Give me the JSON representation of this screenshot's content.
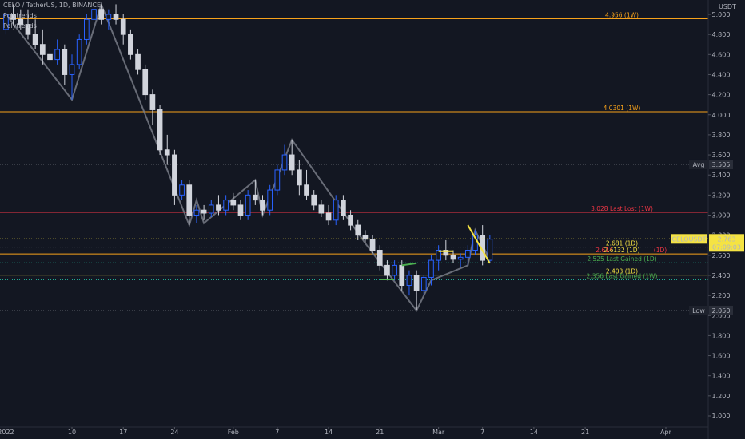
{
  "header": {
    "symbol_line": "CELO / TetherUS, 1D, BINANCE",
    "indicators": [
      "Polytrends",
      "Polytrends"
    ]
  },
  "price_axis": {
    "currency": "USDT",
    "ticks": [
      "5.000",
      "4.800",
      "4.600",
      "4.400",
      "4.200",
      "4.000",
      "3.800",
      "3.600",
      "3.400",
      "3.200",
      "3.000",
      "2.800",
      "2.600",
      "2.400",
      "2.200",
      "2.000",
      "1.800",
      "1.600",
      "1.400",
      "1.200",
      "1.000"
    ]
  },
  "time_axis": {
    "ticks": [
      {
        "label": "2022",
        "date": "2022-01-01"
      },
      {
        "label": "10",
        "date": "2022-01-10"
      },
      {
        "label": "17",
        "date": "2022-01-17"
      },
      {
        "label": "24",
        "date": "2022-01-24"
      },
      {
        "label": "Feb",
        "date": "2022-02-01"
      },
      {
        "label": "7",
        "date": "2022-02-07"
      },
      {
        "label": "14",
        "date": "2022-02-14"
      },
      {
        "label": "21",
        "date": "2022-02-21"
      },
      {
        "label": "Mar",
        "date": "2022-03-01"
      },
      {
        "label": "7",
        "date": "2022-03-07"
      },
      {
        "label": "14",
        "date": "2022-03-14"
      },
      {
        "label": "21",
        "date": "2022-03-21"
      },
      {
        "label": "Apr",
        "date": "2022-04-01"
      }
    ]
  },
  "colors": {
    "background": "#131722",
    "up": "#2962ff",
    "down": "#d1d4dc",
    "orange": "#f7a21b",
    "red": "#f23645",
    "green": "#22ab94",
    "yellow": "#f5e342",
    "zigzag": "#787b86"
  },
  "chart_data": {
    "type": "candlestick",
    "title": "CELO / TetherUS, 1D, BINANCE",
    "ylim": [
      0.95,
      5.05
    ],
    "y_unit": "USDT",
    "x_range": [
      "2022-01-01",
      "2022-04-04"
    ],
    "candles": [
      {
        "date": "2022-01-01",
        "open": 4.85,
        "high": 5.05,
        "low": 4.8,
        "close": 5.0
      },
      {
        "date": "2022-01-02",
        "open": 5.0,
        "high": 5.1,
        "low": 4.9,
        "close": 4.95
      },
      {
        "date": "2022-01-03",
        "open": 4.95,
        "high": 5.05,
        "low": 4.85,
        "close": 4.9
      },
      {
        "date": "2022-01-04",
        "open": 4.9,
        "high": 5.05,
        "low": 4.75,
        "close": 4.8
      },
      {
        "date": "2022-01-05",
        "open": 4.8,
        "high": 4.95,
        "low": 4.65,
        "close": 4.7
      },
      {
        "date": "2022-01-06",
        "open": 4.7,
        "high": 4.85,
        "low": 4.5,
        "close": 4.6
      },
      {
        "date": "2022-01-07",
        "open": 4.6,
        "high": 4.7,
        "low": 4.45,
        "close": 4.55
      },
      {
        "date": "2022-01-08",
        "open": 4.55,
        "high": 4.75,
        "low": 4.5,
        "close": 4.65
      },
      {
        "date": "2022-01-09",
        "open": 4.65,
        "high": 4.7,
        "low": 4.3,
        "close": 4.4
      },
      {
        "date": "2022-01-10",
        "open": 4.4,
        "high": 4.6,
        "low": 4.15,
        "close": 4.5
      },
      {
        "date": "2022-01-11",
        "open": 4.5,
        "high": 4.8,
        "low": 4.45,
        "close": 4.75
      },
      {
        "date": "2022-01-12",
        "open": 4.75,
        "high": 5.0,
        "low": 4.7,
        "close": 4.95
      },
      {
        "date": "2022-01-13",
        "open": 4.95,
        "high": 5.1,
        "low": 4.85,
        "close": 5.05
      },
      {
        "date": "2022-01-14",
        "open": 5.05,
        "high": 5.1,
        "low": 4.9,
        "close": 4.95
      },
      {
        "date": "2022-01-15",
        "open": 4.95,
        "high": 5.05,
        "low": 4.85,
        "close": 5.0
      },
      {
        "date": "2022-01-16",
        "open": 5.0,
        "high": 5.1,
        "low": 4.9,
        "close": 4.95
      },
      {
        "date": "2022-01-17",
        "open": 4.95,
        "high": 5.0,
        "low": 4.7,
        "close": 4.8
      },
      {
        "date": "2022-01-18",
        "open": 4.8,
        "high": 4.85,
        "low": 4.55,
        "close": 4.6
      },
      {
        "date": "2022-01-19",
        "open": 4.6,
        "high": 4.65,
        "low": 4.4,
        "close": 4.45
      },
      {
        "date": "2022-01-20",
        "open": 4.45,
        "high": 4.5,
        "low": 4.15,
        "close": 4.2
      },
      {
        "date": "2022-01-21",
        "open": 4.2,
        "high": 4.25,
        "low": 3.9,
        "close": 4.05
      },
      {
        "date": "2022-01-22",
        "open": 4.05,
        "high": 4.1,
        "low": 3.6,
        "close": 3.65
      },
      {
        "date": "2022-01-23",
        "open": 3.65,
        "high": 3.8,
        "low": 3.5,
        "close": 3.6
      },
      {
        "date": "2022-01-24",
        "open": 3.6,
        "high": 3.65,
        "low": 3.1,
        "close": 3.2
      },
      {
        "date": "2022-01-25",
        "open": 3.2,
        "high": 3.35,
        "low": 3.15,
        "close": 3.3
      },
      {
        "date": "2022-01-26",
        "open": 3.3,
        "high": 3.35,
        "low": 2.9,
        "close": 3.0
      },
      {
        "date": "2022-01-27",
        "open": 3.0,
        "high": 3.1,
        "low": 2.92,
        "close": 3.05
      },
      {
        "date": "2022-01-28",
        "open": 3.05,
        "high": 3.1,
        "low": 2.95,
        "close": 3.02
      },
      {
        "date": "2022-01-29",
        "open": 3.02,
        "high": 3.15,
        "low": 2.98,
        "close": 3.1
      },
      {
        "date": "2022-01-30",
        "open": 3.1,
        "high": 3.2,
        "low": 3.0,
        "close": 3.05
      },
      {
        "date": "2022-01-31",
        "open": 3.05,
        "high": 3.2,
        "low": 3.0,
        "close": 3.15
      },
      {
        "date": "2022-02-01",
        "open": 3.15,
        "high": 3.22,
        "low": 3.05,
        "close": 3.1
      },
      {
        "date": "2022-02-02",
        "open": 3.1,
        "high": 3.15,
        "low": 2.95,
        "close": 3.0
      },
      {
        "date": "2022-02-03",
        "open": 3.0,
        "high": 3.25,
        "low": 2.95,
        "close": 3.2
      },
      {
        "date": "2022-02-04",
        "open": 3.2,
        "high": 3.35,
        "low": 3.1,
        "close": 3.15
      },
      {
        "date": "2022-02-05",
        "open": 3.15,
        "high": 3.2,
        "low": 3.0,
        "close": 3.05
      },
      {
        "date": "2022-02-06",
        "open": 3.05,
        "high": 3.3,
        "low": 3.0,
        "close": 3.25
      },
      {
        "date": "2022-02-07",
        "open": 3.25,
        "high": 3.5,
        "low": 3.2,
        "close": 3.45
      },
      {
        "date": "2022-02-08",
        "open": 3.45,
        "high": 3.7,
        "low": 3.4,
        "close": 3.6
      },
      {
        "date": "2022-02-09",
        "open": 3.6,
        "high": 3.75,
        "low": 3.4,
        "close": 3.45
      },
      {
        "date": "2022-02-10",
        "open": 3.45,
        "high": 3.55,
        "low": 3.2,
        "close": 3.3
      },
      {
        "date": "2022-02-11",
        "open": 3.3,
        "high": 3.45,
        "low": 3.15,
        "close": 3.2
      },
      {
        "date": "2022-02-12",
        "open": 3.2,
        "high": 3.25,
        "low": 3.05,
        "close": 3.1
      },
      {
        "date": "2022-02-13",
        "open": 3.1,
        "high": 3.15,
        "low": 2.98,
        "close": 3.02
      },
      {
        "date": "2022-02-14",
        "open": 3.02,
        "high": 3.1,
        "low": 2.9,
        "close": 2.95
      },
      {
        "date": "2022-02-15",
        "open": 2.95,
        "high": 3.2,
        "low": 2.9,
        "close": 3.15
      },
      {
        "date": "2022-02-16",
        "open": 3.15,
        "high": 3.2,
        "low": 2.95,
        "close": 3.0
      },
      {
        "date": "2022-02-17",
        "open": 3.0,
        "high": 3.05,
        "low": 2.85,
        "close": 2.9
      },
      {
        "date": "2022-02-18",
        "open": 2.9,
        "high": 2.95,
        "low": 2.75,
        "close": 2.8
      },
      {
        "date": "2022-02-19",
        "open": 2.8,
        "high": 2.85,
        "low": 2.72,
        "close": 2.76
      },
      {
        "date": "2022-02-20",
        "open": 2.76,
        "high": 2.8,
        "low": 2.62,
        "close": 2.65
      },
      {
        "date": "2022-02-21",
        "open": 2.65,
        "high": 2.7,
        "low": 2.45,
        "close": 2.5
      },
      {
        "date": "2022-02-22",
        "open": 2.5,
        "high": 2.55,
        "low": 2.35,
        "close": 2.4
      },
      {
        "date": "2022-02-23",
        "open": 2.4,
        "high": 2.55,
        "low": 2.35,
        "close": 2.5
      },
      {
        "date": "2022-02-24",
        "open": 2.5,
        "high": 2.55,
        "low": 2.25,
        "close": 2.3
      },
      {
        "date": "2022-02-25",
        "open": 2.3,
        "high": 2.45,
        "low": 2.2,
        "close": 2.4
      },
      {
        "date": "2022-02-26",
        "open": 2.4,
        "high": 2.45,
        "low": 2.05,
        "close": 2.25
      },
      {
        "date": "2022-02-27",
        "open": 2.25,
        "high": 2.4,
        "low": 2.2,
        "close": 2.38
      },
      {
        "date": "2022-02-28",
        "open": 2.38,
        "high": 2.6,
        "low": 2.3,
        "close": 2.55
      },
      {
        "date": "2022-03-01",
        "open": 2.55,
        "high": 2.7,
        "low": 2.45,
        "close": 2.65
      },
      {
        "date": "2022-03-02",
        "open": 2.65,
        "high": 2.75,
        "low": 2.55,
        "close": 2.6
      },
      {
        "date": "2022-03-03",
        "open": 2.6,
        "high": 2.65,
        "low": 2.52,
        "close": 2.56
      },
      {
        "date": "2022-03-04",
        "open": 2.56,
        "high": 2.62,
        "low": 2.48,
        "close": 2.58
      },
      {
        "date": "2022-03-05",
        "open": 2.58,
        "high": 2.7,
        "low": 2.5,
        "close": 2.65
      },
      {
        "date": "2022-03-06",
        "open": 2.65,
        "high": 2.85,
        "low": 2.6,
        "close": 2.8
      },
      {
        "date": "2022-03-07",
        "open": 2.8,
        "high": 2.9,
        "low": 2.5,
        "close": 2.55
      },
      {
        "date": "2022-03-08",
        "open": 2.55,
        "high": 2.8,
        "low": 2.52,
        "close": 2.76
      }
    ],
    "zigzag": [
      {
        "date": "2022-01-01",
        "price": 5.0
      },
      {
        "date": "2022-01-10",
        "price": 4.15
      },
      {
        "date": "2022-01-14",
        "price": 5.1
      },
      {
        "date": "2022-01-26",
        "price": 2.9
      },
      {
        "date": "2022-01-27",
        "price": 3.15
      },
      {
        "date": "2022-01-28",
        "price": 2.92
      },
      {
        "date": "2022-02-04",
        "price": 3.35
      },
      {
        "date": "2022-02-05",
        "price": 3.0
      },
      {
        "date": "2022-02-09",
        "price": 3.75
      },
      {
        "date": "2022-02-19",
        "price": 2.72
      },
      {
        "date": "2022-02-26",
        "price": 2.05
      },
      {
        "date": "2022-02-28",
        "price": 2.35
      },
      {
        "date": "2022-03-05",
        "price": 2.5
      },
      {
        "date": "2022-03-06",
        "price": 2.85
      },
      {
        "date": "2022-03-08",
        "price": 2.55
      }
    ],
    "levels": [
      {
        "price": 4.956,
        "label": "4.956  (1W)",
        "color": "#f7a21b",
        "style": "solid",
        "label_color": "#f7a21b"
      },
      {
        "price": 4.0301,
        "label": "4.0301  (1W)",
        "color": "#f7a21b",
        "style": "solid",
        "label_color": "#f7a21b"
      },
      {
        "price": 3.505,
        "label": "",
        "color": "#5d606b",
        "style": "dotted",
        "label_color": "#5d606b"
      },
      {
        "price": 3.028,
        "label": "3.028  Last Lost  (1W)",
        "color": "#f23645",
        "style": "solid",
        "label_color": "#f23645"
      },
      {
        "price": 2.681,
        "label": "2.681  (1D)",
        "color": "#5d606b",
        "style": "dotted",
        "label_color": "#f5e342"
      },
      {
        "price": 2.6132,
        "label": "2.6132  (1D)",
        "color": "#f7a21b",
        "style": "solid",
        "label_color": "#f5e342"
      },
      {
        "price": 2.525,
        "label": "2.525  Last Gained  (1D)",
        "color": "#22ab94",
        "style": "dotted",
        "label_color": "#4caf50"
      },
      {
        "price": 2.403,
        "label": "2.403  (1D)",
        "color": "#f5e342",
        "style": "solid",
        "label_color": "#f5e342"
      },
      {
        "price": 2.356,
        "label": "2.356  Last Gained  (1W)",
        "color": "#22ab94",
        "style": "dotted",
        "label_color": "#4caf50"
      },
      {
        "price": 2.05,
        "label": "",
        "color": "#5d606b",
        "style": "dotted",
        "label_color": "#5d606b"
      }
    ],
    "extra_labels": [
      {
        "text": "2.614",
        "price": 2.6132,
        "color": "#f23645",
        "side": "left"
      },
      {
        "text": "(1D)",
        "price": 2.6132,
        "color": "#f23645",
        "side": "right"
      }
    ],
    "badges": [
      {
        "name": "avg-badge",
        "label": "Avg",
        "value": "3.505",
        "price": 3.505
      },
      {
        "name": "low-badge",
        "label": "Low",
        "value": "2.050",
        "price": 2.05
      }
    ],
    "last_price": {
      "symbol": "CELOUSDT",
      "price": "2.763",
      "countdown": "07:09:03",
      "value": 2.763
    }
  }
}
